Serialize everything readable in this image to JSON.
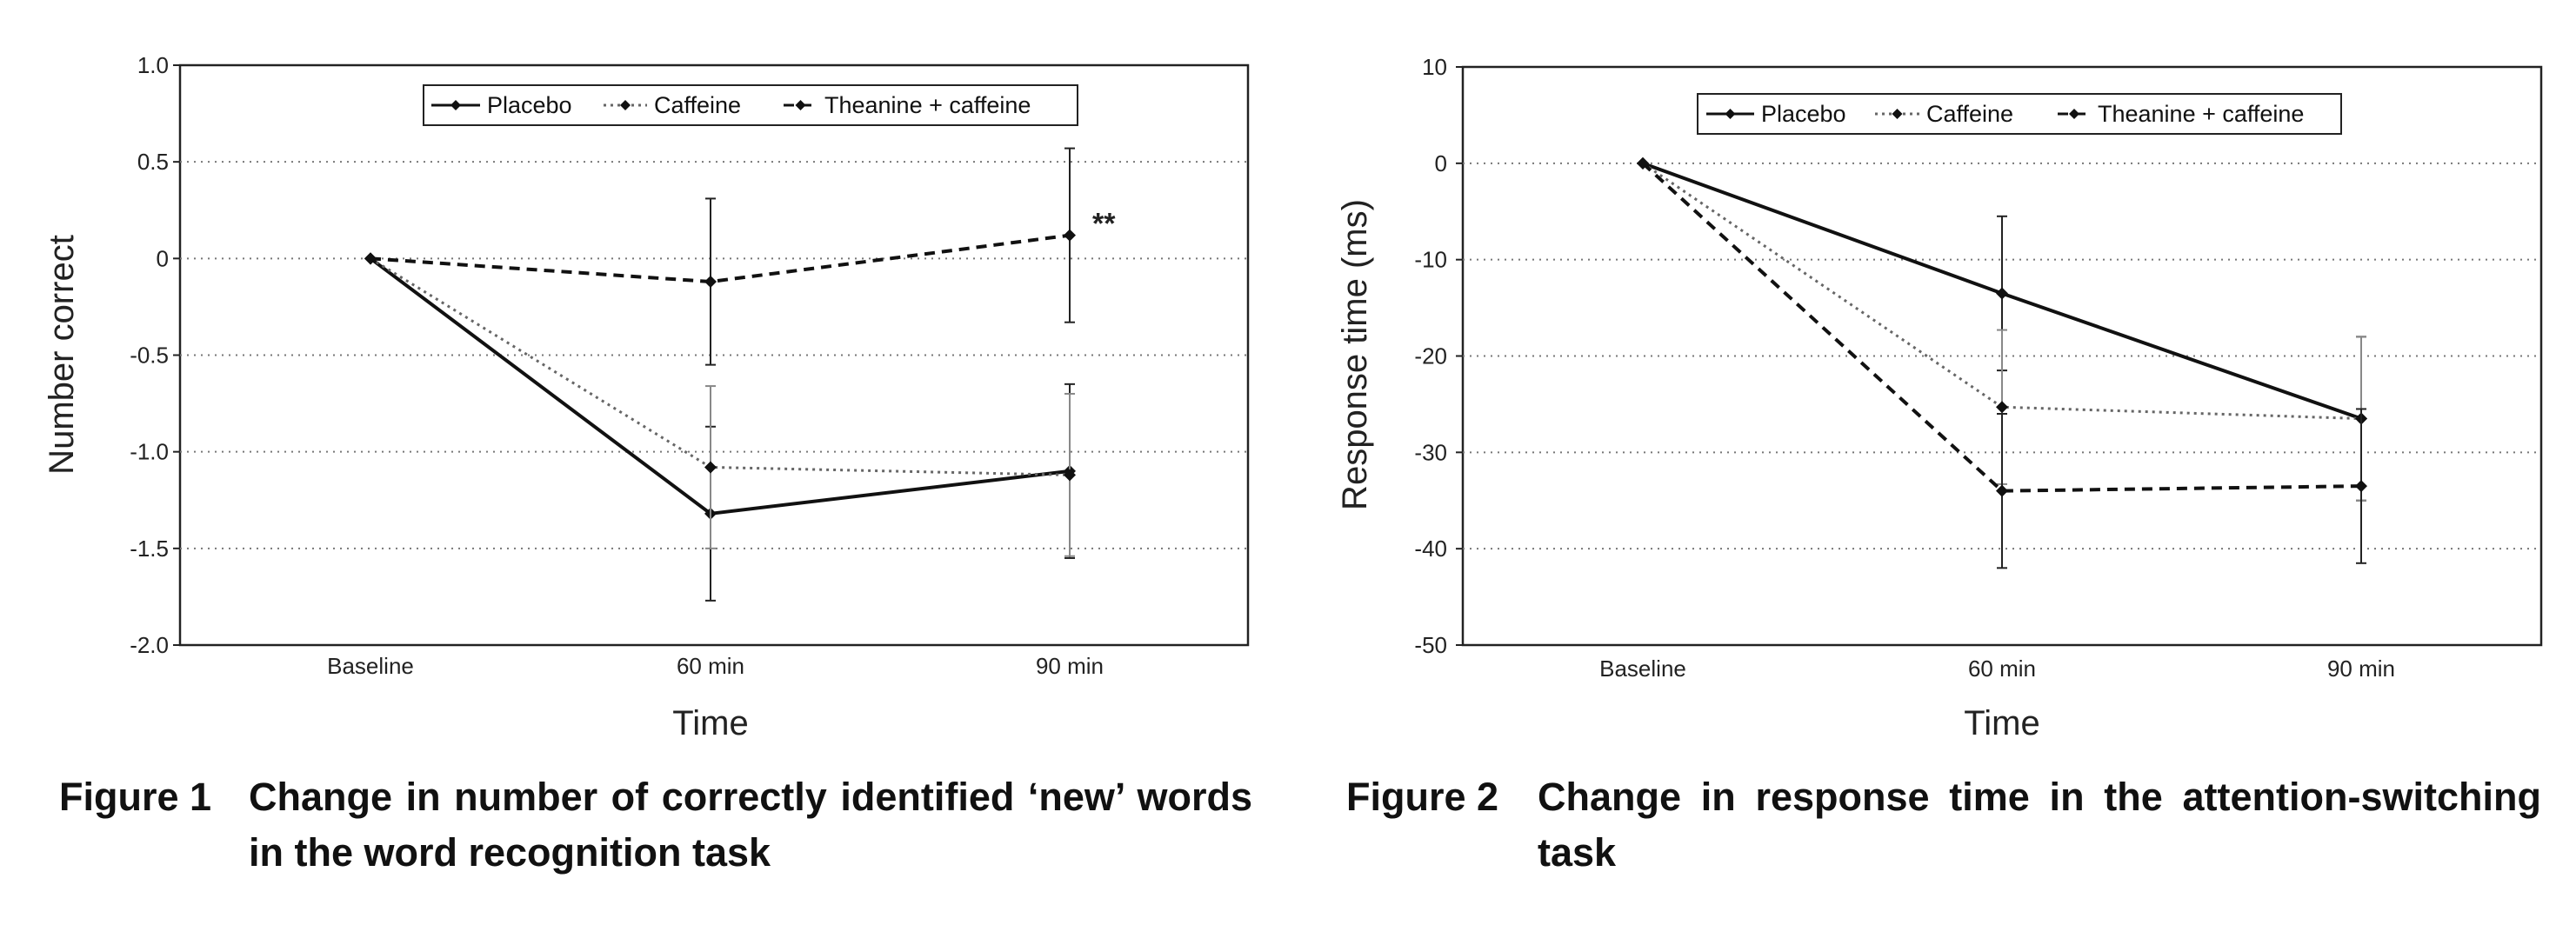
{
  "chart_data": [
    {
      "type": "line",
      "figure_label": "Figure 1",
      "caption": "Change in number of correctly identified ‘new’ words in the word recognition task",
      "categories": [
        "Baseline",
        "60 min",
        "90 min"
      ],
      "xlabel": "Time",
      "ylabel": "Number correct",
      "ylim": [
        -2.0,
        1.0
      ],
      "yticks": [
        "1.0",
        "0.5",
        "0",
        "-0.5",
        "-1.0",
        "-1.5",
        "-2.0"
      ],
      "ytick_values": [
        1.0,
        0.5,
        0,
        -0.5,
        -1.0,
        -1.5,
        -2.0
      ],
      "grid": "horizontal dotted",
      "legend_position": "top",
      "series": [
        {
          "name": "Placebo",
          "style": "solid",
          "values": [
            0,
            -1.32,
            -1.1
          ],
          "error": [
            0,
            0.45,
            0.45
          ]
        },
        {
          "name": "Caffeine",
          "style": "dotted",
          "values": [
            0,
            -1.08,
            -1.12
          ],
          "error": [
            0,
            0.42,
            0.42
          ]
        },
        {
          "name": "Theanine + caffeine",
          "style": "dashed",
          "values": [
            0,
            -0.12,
            0.12
          ],
          "error": [
            0,
            0.43,
            0.45
          ]
        }
      ],
      "annotation": "**"
    },
    {
      "type": "line",
      "figure_label": "Figure 2",
      "caption": "Change in response time in the attention-switching task",
      "categories": [
        "Baseline",
        "60 min",
        "90 min"
      ],
      "xlabel": "Time",
      "ylabel": "Response time (ms)",
      "ylim": [
        -50,
        10
      ],
      "yticks": [
        "10",
        "0",
        "-10",
        "-20",
        "-30",
        "-40",
        "-50"
      ],
      "ytick_values": [
        10,
        0,
        -10,
        -20,
        -30,
        -40,
        -50
      ],
      "grid": "horizontal dotted",
      "legend_position": "top",
      "series": [
        {
          "name": "Placebo",
          "style": "solid",
          "values": [
            0,
            -13.5,
            -26.5
          ],
          "error": [
            0,
            8,
            8.5
          ]
        },
        {
          "name": "Caffeine",
          "style": "dotted",
          "values": [
            0,
            -25.3,
            -26.5
          ],
          "error": [
            0,
            8,
            8.5
          ]
        },
        {
          "name": "Theanine + caffeine",
          "style": "dashed",
          "values": [
            0,
            -34,
            -33.5
          ],
          "error": [
            0,
            8,
            8
          ]
        }
      ]
    }
  ]
}
